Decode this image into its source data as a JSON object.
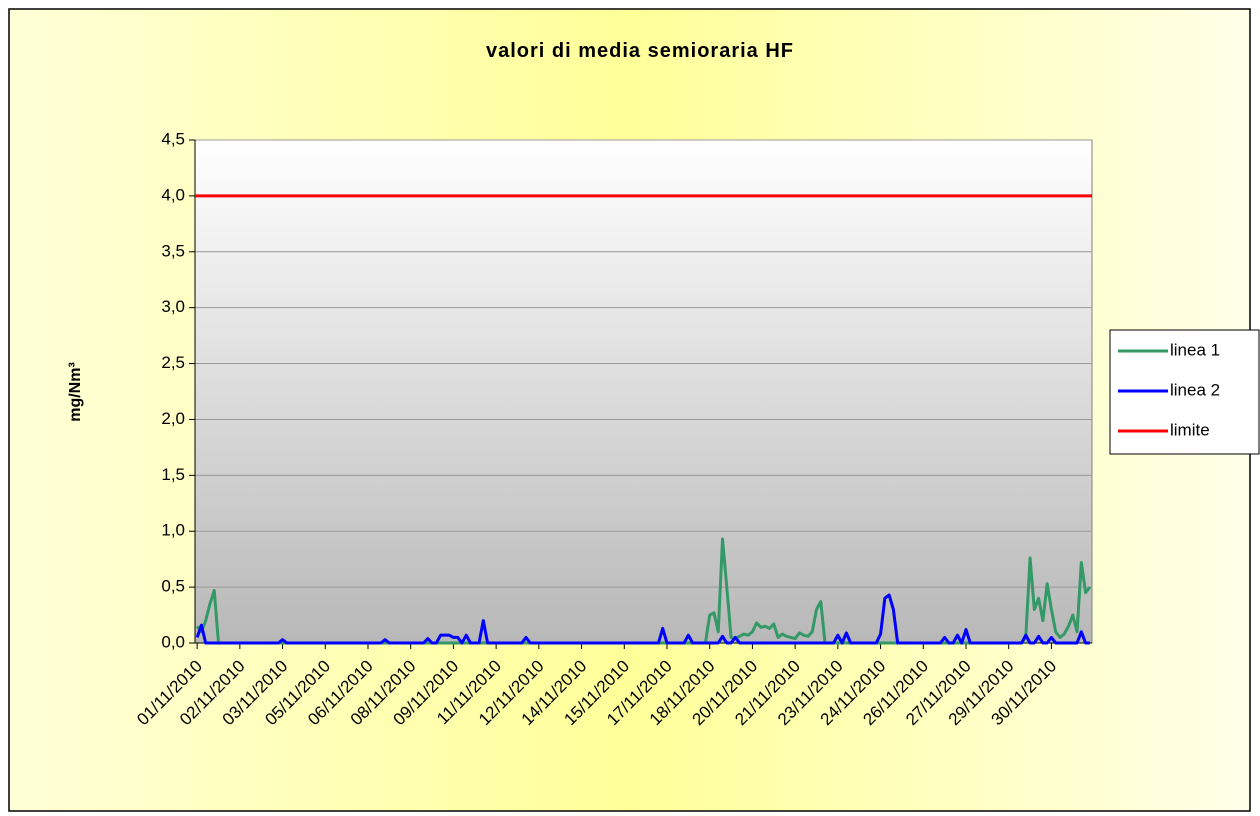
{
  "chart_data": {
    "type": "line",
    "title": "valori di media semioraria HF",
    "y_label": "mg/Nm³",
    "ylim": [
      0,
      4.5
    ],
    "yticks": [
      {
        "value": 0,
        "label": "0,0"
      },
      {
        "value": 0.5,
        "label": "0,5"
      },
      {
        "value": 1,
        "label": "1,0"
      },
      {
        "value": 1.5,
        "label": "1,5"
      },
      {
        "value": 2,
        "label": "2,0"
      },
      {
        "value": 2.5,
        "label": "2,5"
      },
      {
        "value": 3,
        "label": "3,0"
      },
      {
        "value": 3.5,
        "label": "3,5"
      },
      {
        "value": 4,
        "label": "4,0"
      },
      {
        "value": 4.5,
        "label": "4,5"
      }
    ],
    "grid": true,
    "legend": "right",
    "categories": [
      "01/11/2010",
      null,
      null,
      null,
      null,
      null,
      null,
      null,
      null,
      null,
      "02/11/2010",
      null,
      null,
      null,
      null,
      null,
      null,
      null,
      null,
      null,
      "03/11/2010",
      null,
      null,
      null,
      null,
      null,
      null,
      null,
      null,
      null,
      "05/11/2010",
      null,
      null,
      null,
      null,
      null,
      null,
      null,
      null,
      null,
      "06/11/2010",
      null,
      null,
      null,
      null,
      null,
      null,
      null,
      null,
      null,
      "08/11/2010",
      null,
      null,
      null,
      null,
      null,
      null,
      null,
      null,
      null,
      "09/11/2010",
      null,
      null,
      null,
      null,
      null,
      null,
      null,
      null,
      null,
      "11/11/2010",
      null,
      null,
      null,
      null,
      null,
      null,
      null,
      null,
      null,
      "12/11/2010",
      null,
      null,
      null,
      null,
      null,
      null,
      null,
      null,
      null,
      "14/11/2010",
      null,
      null,
      null,
      null,
      null,
      null,
      null,
      null,
      null,
      "15/11/2010",
      null,
      null,
      null,
      null,
      null,
      null,
      null,
      null,
      null,
      "17/11/2010",
      null,
      null,
      null,
      null,
      null,
      null,
      null,
      null,
      null,
      "18/11/2010",
      null,
      null,
      null,
      null,
      null,
      null,
      null,
      null,
      null,
      "20/11/2010",
      null,
      null,
      null,
      null,
      null,
      null,
      null,
      null,
      null,
      "21/11/2010",
      null,
      null,
      null,
      null,
      null,
      null,
      null,
      null,
      null,
      "23/11/2010",
      null,
      null,
      null,
      null,
      null,
      null,
      null,
      null,
      null,
      "24/11/2010",
      null,
      null,
      null,
      null,
      null,
      null,
      null,
      null,
      null,
      "26/11/2010",
      null,
      null,
      null,
      null,
      null,
      null,
      null,
      null,
      null,
      "27/11/2010",
      null,
      null,
      null,
      null,
      null,
      null,
      null,
      null,
      null,
      "29/11/2010",
      null,
      null,
      null,
      null,
      null,
      null,
      null,
      null,
      null,
      "30/11/2010",
      null,
      null,
      null,
      null,
      null,
      null,
      null,
      null,
      null
    ],
    "series": [
      {
        "name": "linea 1",
        "color": "#339966",
        "values": [
          0.15,
          0.1,
          0.2,
          0.35,
          0.47,
          0,
          0,
          0,
          0,
          0,
          0,
          0,
          0,
          0,
          0,
          0,
          0,
          0,
          0,
          0,
          0,
          0,
          0,
          0,
          0,
          0,
          0,
          0,
          0,
          0,
          0,
          0,
          0,
          0,
          0,
          0,
          0,
          0,
          0,
          0,
          0,
          0,
          0,
          0,
          0,
          0,
          0,
          0,
          0,
          0,
          0,
          0,
          0,
          0,
          0,
          0,
          0,
          0,
          0,
          0,
          0,
          0,
          0,
          0,
          0,
          0,
          0,
          0,
          0,
          0,
          0,
          0,
          0,
          0,
          0,
          0,
          0,
          0,
          0,
          0,
          0,
          0,
          0,
          0,
          0,
          0,
          0,
          0,
          0,
          0,
          0,
          0,
          0,
          0,
          0,
          0,
          0,
          0,
          0,
          0,
          0,
          0,
          0,
          0,
          0,
          0,
          0,
          0,
          0,
          0,
          0,
          0,
          0,
          0,
          0,
          0,
          0,
          0,
          0,
          0,
          0.25,
          0.27,
          0.1,
          0.93,
          0.5,
          0.05,
          0.04,
          0.06,
          0.08,
          0.07,
          0.1,
          0.18,
          0.14,
          0.15,
          0.13,
          0.17,
          0.05,
          0.08,
          0.06,
          0.05,
          0.04,
          0.09,
          0.07,
          0.06,
          0.1,
          0.3,
          0.37,
          0,
          0,
          0,
          0,
          0,
          0,
          0,
          0,
          0,
          0,
          0,
          0,
          0,
          0,
          0,
          0,
          0,
          0,
          0,
          0,
          0,
          0,
          0,
          0,
          0,
          0,
          0,
          0,
          0,
          0,
          0,
          0,
          0,
          0,
          0,
          0,
          0,
          0,
          0,
          0,
          0,
          0,
          0,
          0,
          0,
          0,
          0,
          0.05,
          0.76,
          0.3,
          0.4,
          0.2,
          0.53,
          0.3,
          0.1,
          0.05,
          0.08,
          0.15,
          0.25,
          0.1,
          0.72,
          0.45,
          0.5
        ]
      },
      {
        "name": "linea 2",
        "color": "#0000ff",
        "values": [
          0.05,
          0.16,
          0,
          0,
          0,
          0,
          0,
          0,
          0,
          0,
          0,
          0,
          0,
          0,
          0,
          0,
          0,
          0,
          0,
          0,
          0.03,
          0,
          0,
          0,
          0,
          0,
          0,
          0,
          0,
          0,
          0,
          0,
          0,
          0,
          0,
          0,
          0,
          0,
          0,
          0,
          0,
          0,
          0,
          0,
          0.03,
          0,
          0,
          0,
          0,
          0,
          0,
          0,
          0,
          0,
          0.04,
          0,
          0,
          0.07,
          0.07,
          0.07,
          0.05,
          0.05,
          0,
          0.07,
          0,
          0,
          0,
          0.2,
          0,
          0,
          0,
          0,
          0,
          0,
          0,
          0,
          0,
          0.05,
          0,
          0,
          0,
          0,
          0,
          0,
          0,
          0,
          0,
          0,
          0,
          0,
          0,
          0,
          0,
          0,
          0,
          0,
          0,
          0,
          0,
          0,
          0,
          0,
          0,
          0,
          0,
          0,
          0,
          0,
          0,
          0.13,
          0,
          0,
          0,
          0,
          0,
          0.07,
          0,
          0,
          0,
          0,
          0,
          0,
          0,
          0.06,
          0,
          0,
          0.05,
          0,
          0,
          0,
          0,
          0,
          0,
          0,
          0,
          0,
          0,
          0,
          0,
          0,
          0,
          0,
          0,
          0,
          0,
          0,
          0,
          0,
          0,
          0,
          0.07,
          0,
          0.09,
          0,
          0,
          0,
          0,
          0,
          0,
          0,
          0.08,
          0.4,
          0.43,
          0.3,
          0,
          0,
          0,
          0,
          0,
          0,
          0,
          0,
          0,
          0,
          0,
          0.05,
          0,
          0,
          0.07,
          0,
          0.12,
          0,
          0,
          0,
          0,
          0,
          0,
          0,
          0,
          0,
          0,
          0,
          0,
          0,
          0.07,
          0,
          0,
          0.06,
          0,
          0,
          0.05,
          0,
          0,
          0,
          0,
          0,
          0,
          0.1,
          0,
          0
        ]
      }
    ],
    "limit": {
      "name": "limite",
      "color": "#ff0000",
      "value": 4
    }
  }
}
